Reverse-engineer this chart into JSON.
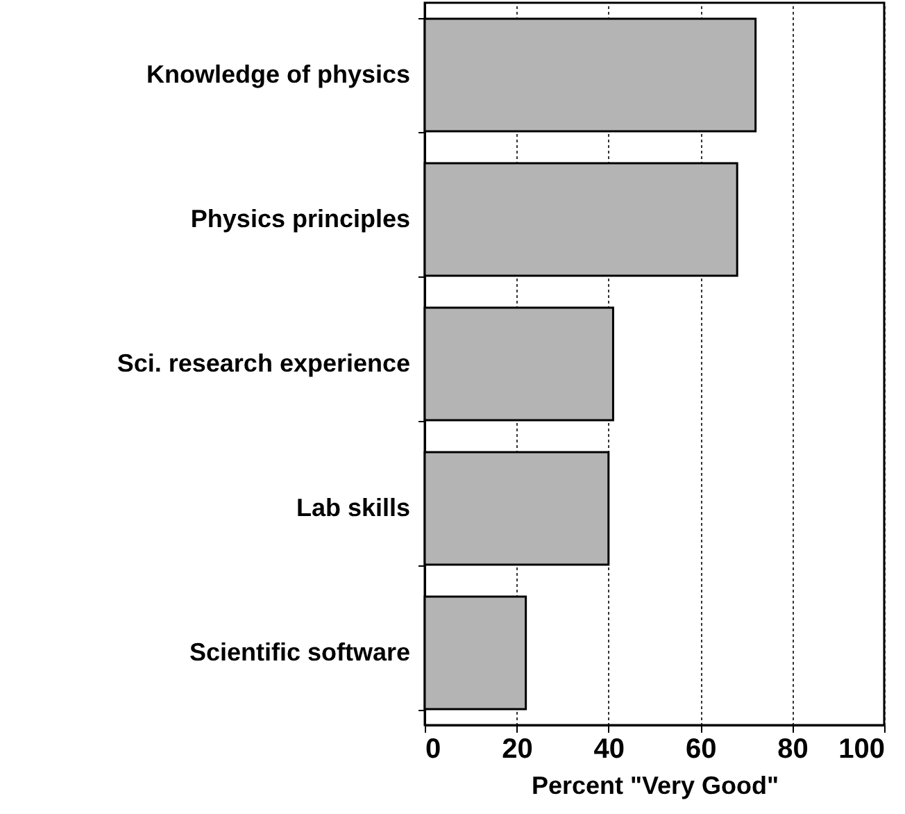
{
  "chart_data": {
    "type": "bar",
    "orientation": "horizontal",
    "xlabel": "Percent \"Very Good\"",
    "categories": [
      "Knowledge of physics",
      "Physics principles",
      "Sci. research experience",
      "Lab skills",
      "Scientific software"
    ],
    "values": [
      72,
      68,
      41,
      40,
      22
    ],
    "color": "#b4b4b4",
    "xlim": [
      0,
      100
    ],
    "xticks": [
      0,
      20,
      40,
      60,
      80,
      100
    ],
    "grid": "x",
    "line_style": "dotted"
  }
}
